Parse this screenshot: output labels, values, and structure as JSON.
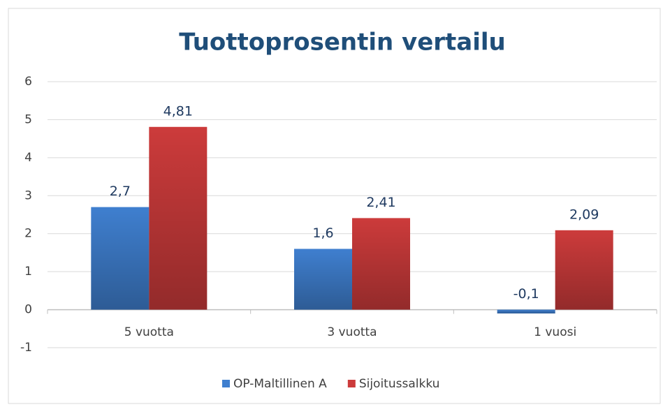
{
  "chart_data": {
    "type": "bar",
    "title": "Tuottoprosentin vertailu",
    "categories": [
      "5 vuotta",
      "3 vuotta",
      "1 vuosi"
    ],
    "series": [
      {
        "name": "OP-Maltillinen A",
        "color": "#3f7fcf",
        "values": [
          2.7,
          1.6,
          -0.1
        ],
        "value_labels": [
          "2,7",
          "1,6",
          "-0,1"
        ]
      },
      {
        "name": "Sijoitussalkku",
        "color": "#cc3b3b",
        "values": [
          4.81,
          2.41,
          2.09
        ],
        "value_labels": [
          "4,81",
          "2,41",
          "2,09"
        ]
      }
    ],
    "ylim": [
      -1,
      6
    ],
    "yticks": [
      -1,
      0,
      1,
      2,
      3,
      4,
      5,
      6
    ],
    "grid": true,
    "legend": "bottom"
  }
}
